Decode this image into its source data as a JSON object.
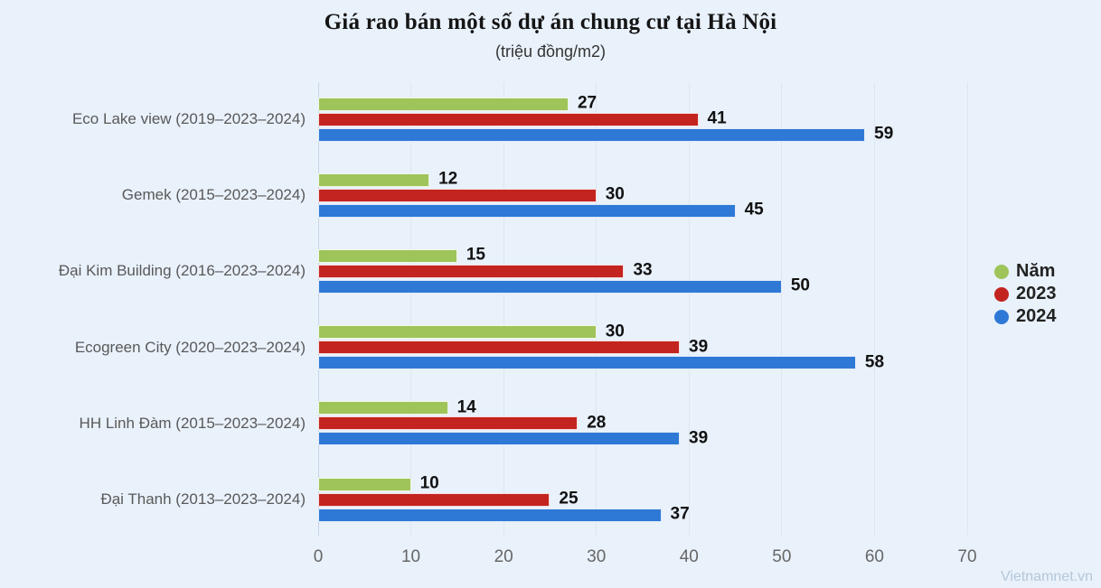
{
  "page": {
    "watermark": "Vietnamnet.vn"
  },
  "chart_data": {
    "type": "bar",
    "orientation": "horizontal",
    "title": "Giá rao bán một số dự án chung cư tại Hà Nội",
    "subtitle": "(triệu đồng/m2)",
    "categories": [
      "Eco Lake view (2019–2023–2024)",
      "Gemek (2015–2023–2024)",
      "Đại Kim Building (2016–2023–2024)",
      "Ecogreen City (2020–2023–2024)",
      "HH Linh Đàm (2015–2023–2024)",
      "Đại Thanh (2013–2023–2024)"
    ],
    "series": [
      {
        "name": "Năm",
        "color": "#9ec45a",
        "values": [
          27,
          12,
          15,
          30,
          14,
          10
        ]
      },
      {
        "name": "2023",
        "color": "#c3241f",
        "values": [
          41,
          30,
          33,
          39,
          28,
          25
        ]
      },
      {
        "name": "2024",
        "color": "#2e79d6",
        "values": [
          59,
          45,
          50,
          58,
          39,
          37
        ]
      }
    ],
    "x_ticks": [
      0,
      10,
      20,
      30,
      40,
      50,
      60,
      70
    ],
    "xlim": [
      0,
      72
    ],
    "grid": true,
    "legend_position": "right",
    "colors": {
      "background": "#e9f1fb",
      "gridline": "#dde6f0",
      "zero_line": "#c9d5e3",
      "value_label": "#111111",
      "axis_label": "#666666",
      "category_label": "#595959",
      "watermark": "#b4c7d9"
    }
  }
}
